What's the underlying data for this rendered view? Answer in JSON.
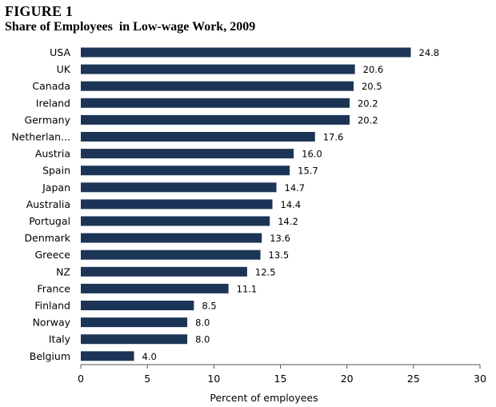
{
  "figure_label": "FIGURE 1",
  "title": "Share of Employees  in Low-wage Work, 2009",
  "chart_data": {
    "type": "bar",
    "orientation": "horizontal",
    "categories": [
      "USA",
      "UK",
      "Canada",
      "Ireland",
      "Germany",
      "Netherlan...",
      "Austria",
      "Spain",
      "Japan",
      "Australia",
      "Portugal",
      "Denmark",
      "Greece",
      "NZ",
      "France",
      "Finland",
      "Norway",
      "Italy",
      "Belgium"
    ],
    "values": [
      24.8,
      20.6,
      20.5,
      20.2,
      20.2,
      17.6,
      16.0,
      15.7,
      14.7,
      14.4,
      14.2,
      13.6,
      13.5,
      12.5,
      11.1,
      8.5,
      8.0,
      8.0,
      4.0
    ],
    "value_labels": [
      "24.8",
      "20.6",
      "20.5",
      "20.2",
      "20.2",
      "17.6",
      "16.0",
      "15.7",
      "14.7",
      "14.4",
      "14.2",
      "13.6",
      "13.5",
      "12.5",
      "11.1",
      "8.5",
      "8.0",
      "8.0",
      "4.0"
    ],
    "xlabel": "Percent of employees",
    "xlim": [
      0,
      30
    ],
    "xticks": [
      0,
      5,
      10,
      15,
      20,
      25,
      30
    ],
    "grid": false,
    "bar_color": "#1c3557"
  }
}
